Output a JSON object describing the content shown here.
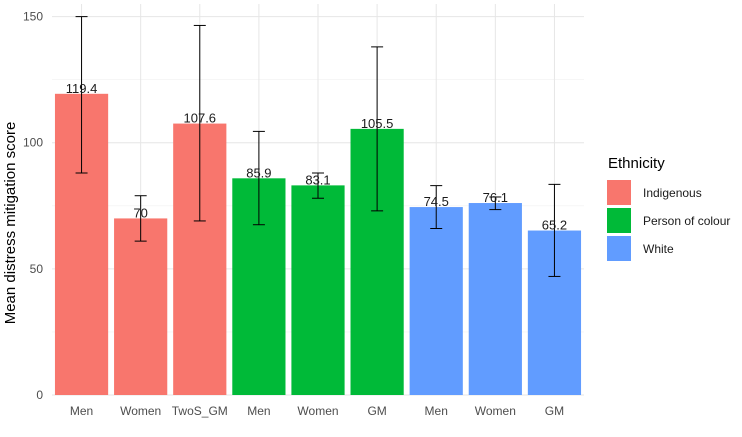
{
  "chart_data": {
    "type": "bar",
    "ylabel": "Mean distress mitigation score",
    "xlabel": "",
    "ylim": [
      0,
      155
    ],
    "yticks": [
      0,
      50,
      100,
      150
    ],
    "grid": true,
    "legend": {
      "title": "Ethnicity",
      "placement": "right",
      "entries": [
        {
          "label": "Indigenous",
          "color": "#F8766D"
        },
        {
          "label": "Person of colour",
          "color": "#00BA38"
        },
        {
          "label": "White",
          "color": "#619CFF"
        }
      ]
    },
    "bars": [
      {
        "category": "Men",
        "group": "Indigenous",
        "value": 119.4,
        "label": "119.4",
        "err_low": 88,
        "err_high": 150
      },
      {
        "category": "Women",
        "group": "Indigenous",
        "value": 70,
        "label": "70",
        "err_low": 61,
        "err_high": 79
      },
      {
        "category": "TwoS_GM",
        "group": "Indigenous",
        "value": 107.6,
        "label": "107.6",
        "err_low": 69,
        "err_high": 146.5
      },
      {
        "category": "Men",
        "group": "Person of colour",
        "value": 85.9,
        "label": "85.9",
        "err_low": 67.5,
        "err_high": 104.5
      },
      {
        "category": "Women",
        "group": "Person of colour",
        "value": 83.1,
        "label": "83.1",
        "err_low": 78,
        "err_high": 88
      },
      {
        "category": "GM",
        "group": "Person of colour",
        "value": 105.5,
        "label": "105.5",
        "err_low": 73,
        "err_high": 138
      },
      {
        "category": "Men",
        "group": "White",
        "value": 74.5,
        "label": "74.5",
        "err_low": 66,
        "err_high": 83
      },
      {
        "category": "Women",
        "group": "White",
        "value": 76.1,
        "label": "76.1",
        "err_low": 73.5,
        "err_high": 78.5
      },
      {
        "category": "GM",
        "group": "White",
        "value": 65.2,
        "label": "65.2",
        "err_low": 47,
        "err_high": 83.5
      }
    ]
  }
}
